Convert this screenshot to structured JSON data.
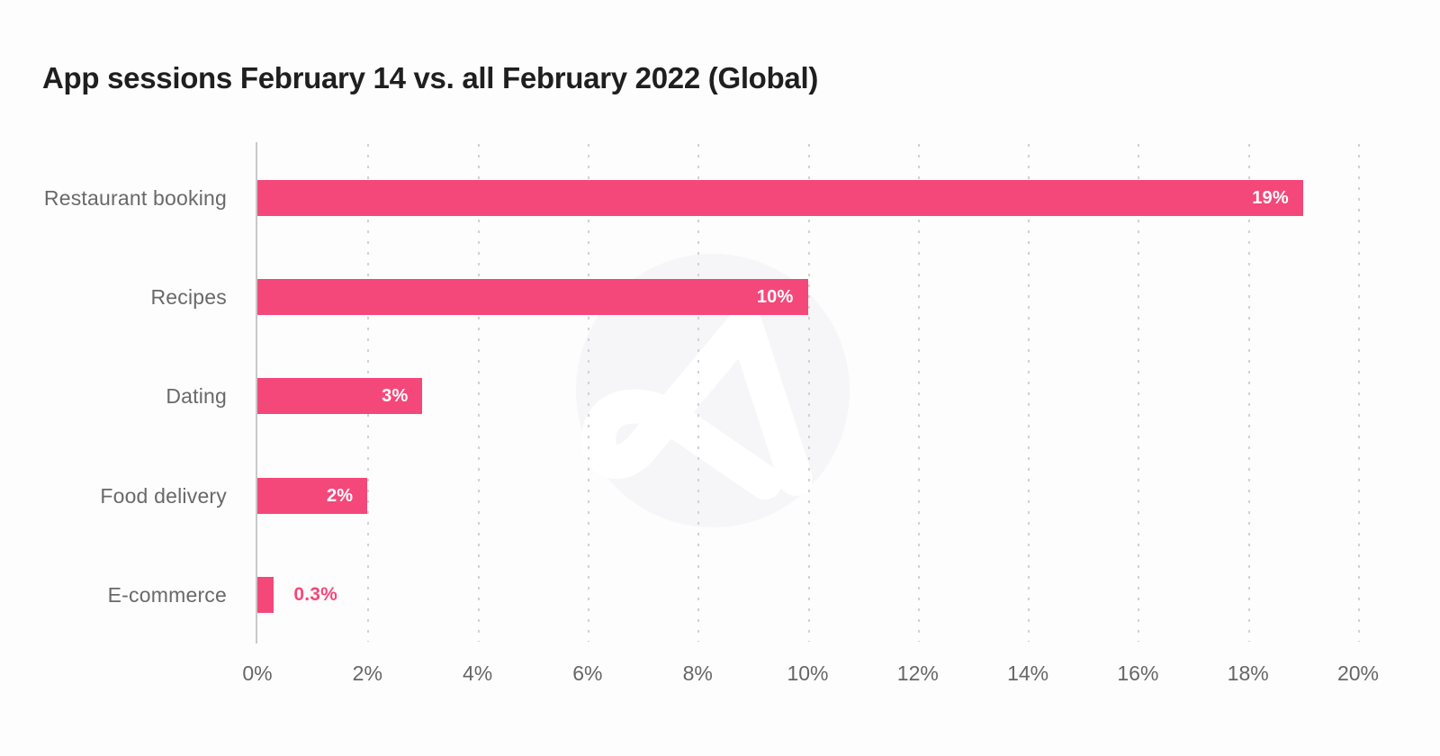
{
  "title": "App sessions February 14 vs. all February 2022 (Global)",
  "colors": {
    "accent_pink": "#f4487a",
    "title_text": "#1f1f1f",
    "label_gray": "#696969",
    "tick_gray": "#666666",
    "axis_line": "#c9c9c9",
    "grid_dot": "#d2d2d2",
    "bar_value_text": "#ffffff",
    "watermark_circle": "#f6f5f8",
    "watermark_glyph": "#ffffff",
    "background": "#fdfdfd"
  },
  "watermark": {
    "icon": "adjust-logo-watermark"
  },
  "chart_data": {
    "type": "bar",
    "orientation": "horizontal",
    "title": "App sessions February 14 vs. all February 2022 (Global)",
    "categories": [
      "Restaurant booking",
      "Recipes",
      "Dating",
      "Food delivery",
      "E-commerce"
    ],
    "values": [
      19,
      10,
      3,
      2,
      0.3
    ],
    "value_labels": [
      "19%",
      "10%",
      "3%",
      "2%",
      "0.3%"
    ],
    "value_label_placement": [
      "inside",
      "inside",
      "inside",
      "inside",
      "outside"
    ],
    "xlabel": "",
    "ylabel": "",
    "xlim": [
      0,
      20
    ],
    "x_ticks": [
      0,
      2,
      4,
      6,
      8,
      10,
      12,
      14,
      16,
      18,
      20
    ],
    "x_tick_labels": [
      "0%",
      "2%",
      "4%",
      "6%",
      "8%",
      "10%",
      "12%",
      "14%",
      "16%",
      "18%",
      "20%"
    ],
    "grid": "vertical-dotted",
    "legend": "none"
  }
}
